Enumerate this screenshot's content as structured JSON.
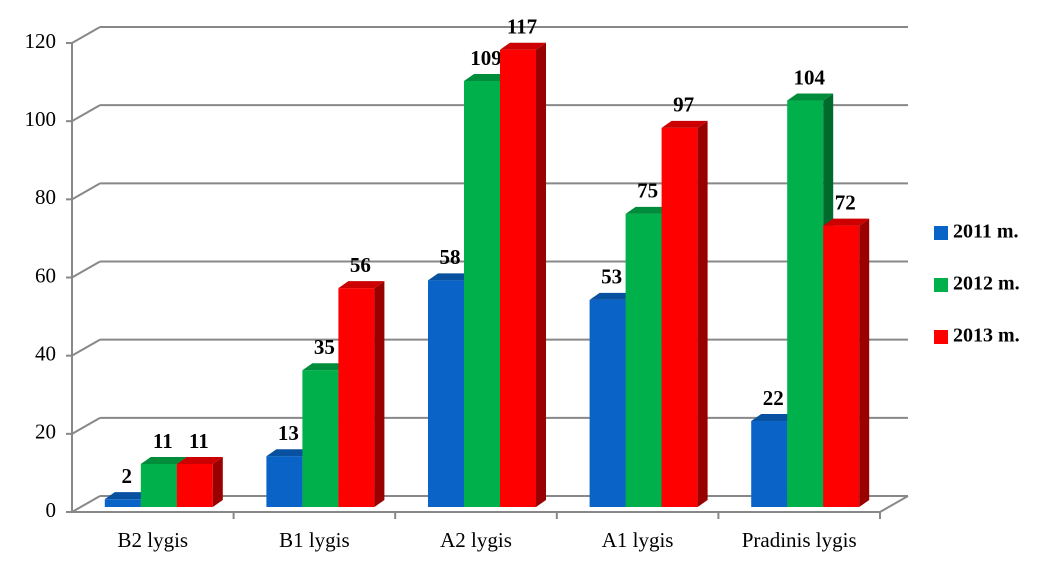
{
  "chart_data": {
    "type": "bar3d",
    "categories": [
      "B2 lygis",
      "B1 lygis",
      "A2 lygis",
      "A1 lygis",
      "Pradinis lygis"
    ],
    "series": [
      {
        "name": "2011 m.",
        "color": "#0a64c8",
        "values": [
          2,
          13,
          58,
          53,
          22
        ]
      },
      {
        "name": "2012 m.",
        "color": "#00b04a",
        "values": [
          11,
          35,
          109,
          75,
          104
        ]
      },
      {
        "name": "2013 m.",
        "color": "#ff0000",
        "values": [
          11,
          56,
          117,
          97,
          72
        ]
      }
    ],
    "ylim": [
      0,
      120
    ],
    "yticks": [
      0,
      20,
      40,
      60,
      80,
      100,
      120
    ],
    "grid": true,
    "legend": "right"
  }
}
